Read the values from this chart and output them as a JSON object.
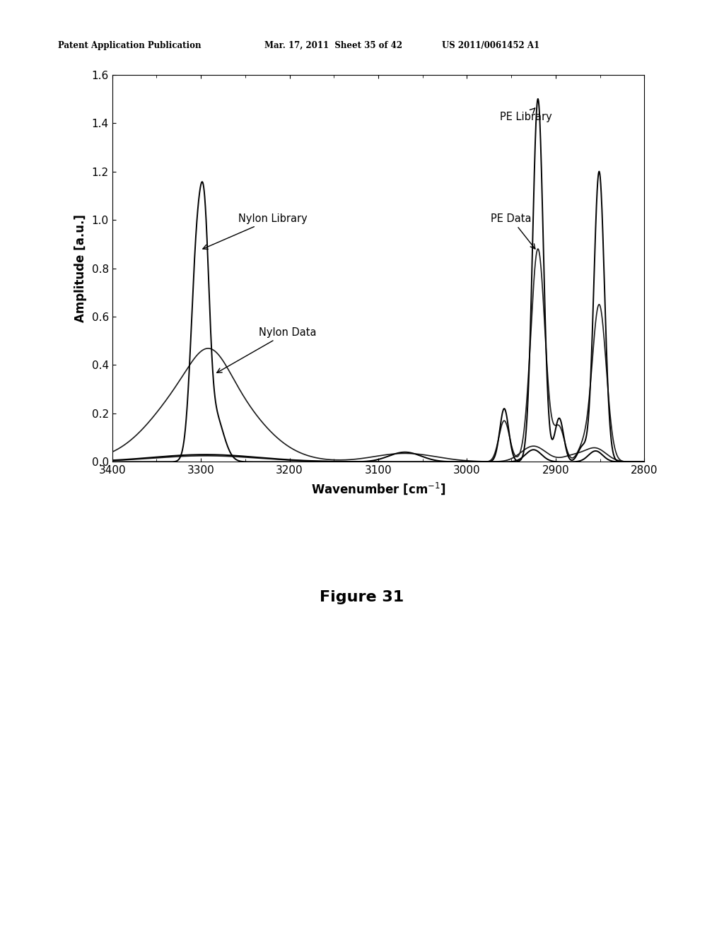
{
  "title": "",
  "xlabel": "Wavenumber [cm$^{-1}$]",
  "ylabel": "Amplitude [a.u.]",
  "xlim": [
    3400,
    2800
  ],
  "ylim": [
    0,
    1.6
  ],
  "xticks": [
    3400,
    3300,
    3200,
    3100,
    3000,
    2900,
    2800
  ],
  "yticks": [
    0,
    0.2,
    0.4,
    0.6,
    0.8,
    1.0,
    1.2,
    1.4,
    1.6
  ],
  "figure_caption": "Figure 31",
  "header_left": "Patent Application Publication",
  "header_mid": "Mar. 17, 2011  Sheet 35 of 42",
  "header_right": "US 2011/0061452 A1",
  "background_color": "#ffffff",
  "plot_bg": "#ffffff"
}
